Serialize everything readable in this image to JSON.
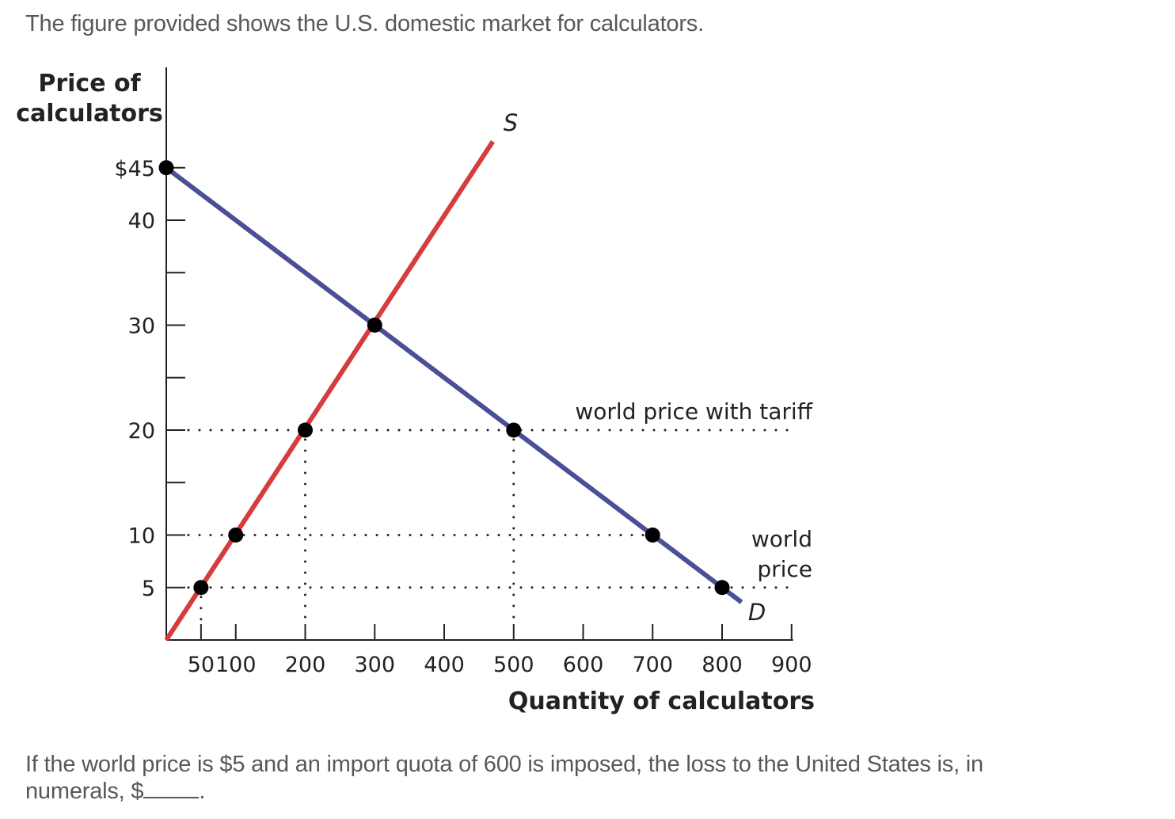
{
  "intro_text": "The figure provided shows the U.S. domestic market for calculators.",
  "question": {
    "text": "If the world price is $5 and an import quota of 600 is imposed, the loss to the United States is, in numerals, $",
    "end": "."
  },
  "chart_data": {
    "type": "line",
    "title": "",
    "ylabel_line1": "Price of",
    "ylabel_line2": "calculators",
    "xlabel": "Quantity of calculators",
    "xlim": [
      0,
      900
    ],
    "ylim": [
      0,
      45
    ],
    "x_ticks": [
      50,
      100,
      200,
      300,
      400,
      500,
      600,
      700,
      800,
      900
    ],
    "x_tick_labels": [
      "50",
      "100",
      "200",
      "300",
      "400",
      "500",
      "600",
      "700",
      "800",
      "900"
    ],
    "y_ticks": [
      5,
      10,
      15,
      20,
      25,
      30,
      35,
      40,
      45
    ],
    "y_tick_labels": [
      {
        "value": 5,
        "label": "5"
      },
      {
        "value": 10,
        "label": "10"
      },
      {
        "value": 20,
        "label": "20"
      },
      {
        "value": 30,
        "label": "30"
      },
      {
        "value": 40,
        "label": "40"
      },
      {
        "value": 45,
        "label": "$45"
      }
    ],
    "series": [
      {
        "name": "S",
        "color": "#d63c3c",
        "points": [
          [
            0,
            0
          ],
          [
            470,
            47.5
          ]
        ]
      },
      {
        "name": "D",
        "color": "#4a4f98",
        "points": [
          [
            0,
            45
          ],
          [
            800,
            5
          ]
        ]
      }
    ],
    "points": [
      [
        0,
        45
      ],
      [
        50,
        5
      ],
      [
        100,
        10
      ],
      [
        200,
        20
      ],
      [
        300,
        30
      ],
      [
        500,
        20
      ],
      [
        700,
        10
      ],
      [
        800,
        5
      ]
    ],
    "price_lines": [
      {
        "price": 20,
        "x_end": 900
      },
      {
        "price": 10,
        "x_end": 700
      },
      {
        "price": 5,
        "x_end": 900
      }
    ],
    "quantity_lines": [
      {
        "x": 50,
        "y_top": 5
      },
      {
        "x": 200,
        "y_top": 20
      },
      {
        "x": 500,
        "y_top": 20
      }
    ],
    "annotations": {
      "tariff": "world price with tariff",
      "world_line1": "world",
      "world_line2": "price"
    },
    "point_color": "#000000",
    "axis_color": "#222222"
  }
}
